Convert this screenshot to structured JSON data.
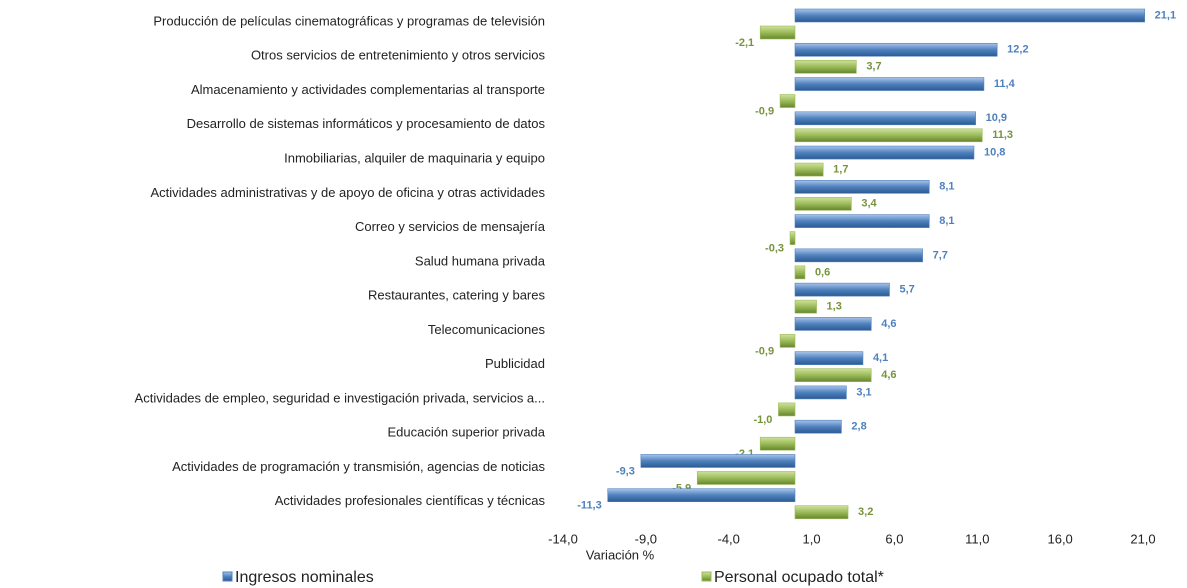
{
  "chart_data": {
    "type": "hbar",
    "categories": [
      "Producción de películas cinematográficas y programas de televisión",
      "Otros servicios de entretenimiento y otros servicios",
      "Almacenamiento y actividades complementarias al transporte",
      "Desarrollo de sistemas informáticos y procesamiento de datos",
      "Inmobiliarias, alquiler de maquinaria y equipo",
      "Actividades administrativas y de apoyo de oficina y otras actividades",
      "Correo y servicios de mensajería",
      "Salud humana privada",
      "Restaurantes, catering y bares",
      "Telecomunicaciones",
      "Publicidad",
      "Actividades de empleo, seguridad e investigación privada, servicios a...",
      "Educación superior privada",
      "Actividades de programación y transmisión, agencias de noticias",
      "Actividades profesionales científicas y técnicas"
    ],
    "series": [
      {
        "name": "Ingresos nominales",
        "color": "#4f81bd",
        "values": [
          21.1,
          12.2,
          11.4,
          10.9,
          10.8,
          8.1,
          8.1,
          7.7,
          5.7,
          4.6,
          4.1,
          3.1,
          2.8,
          -9.3,
          -11.3
        ],
        "value_labels": [
          "21,1",
          "12,2",
          "11,4",
          "10,9",
          "10,8",
          "8,1",
          "8,1",
          "7,7",
          "5,7",
          "4,6",
          "4,1",
          "3,1",
          "2,8",
          "-9,3",
          "-11,3"
        ]
      },
      {
        "name": "Personal ocupado total*",
        "color": "#9bbb59",
        "values": [
          -2.1,
          3.7,
          -0.9,
          11.3,
          1.7,
          3.4,
          -0.3,
          0.6,
          1.3,
          -0.9,
          4.6,
          -1.0,
          -2.1,
          -5.9,
          3.2
        ],
        "value_labels": [
          "-2,1",
          "3,7",
          "-0,9",
          "11,3",
          "1,7",
          "3,4",
          "-0,3",
          "0,6",
          "1,3",
          "-0,9",
          "4,6",
          "-1,0",
          "-2,1",
          "-5,9",
          "3,2"
        ]
      }
    ],
    "xlabel": "Variación %",
    "xlim": [
      -14,
      21
    ],
    "xticks": [
      {
        "value": -14,
        "label": "-14,0"
      },
      {
        "value": -9,
        "label": "-9,0"
      },
      {
        "value": -4,
        "label": "-4,0"
      },
      {
        "value": 1,
        "label": "1,0"
      },
      {
        "value": 6,
        "label": "6,0"
      },
      {
        "value": 11,
        "label": "11,0"
      },
      {
        "value": 16,
        "label": "16,0"
      },
      {
        "value": 21,
        "label": "21,0"
      }
    ],
    "legend": "bottom"
  }
}
